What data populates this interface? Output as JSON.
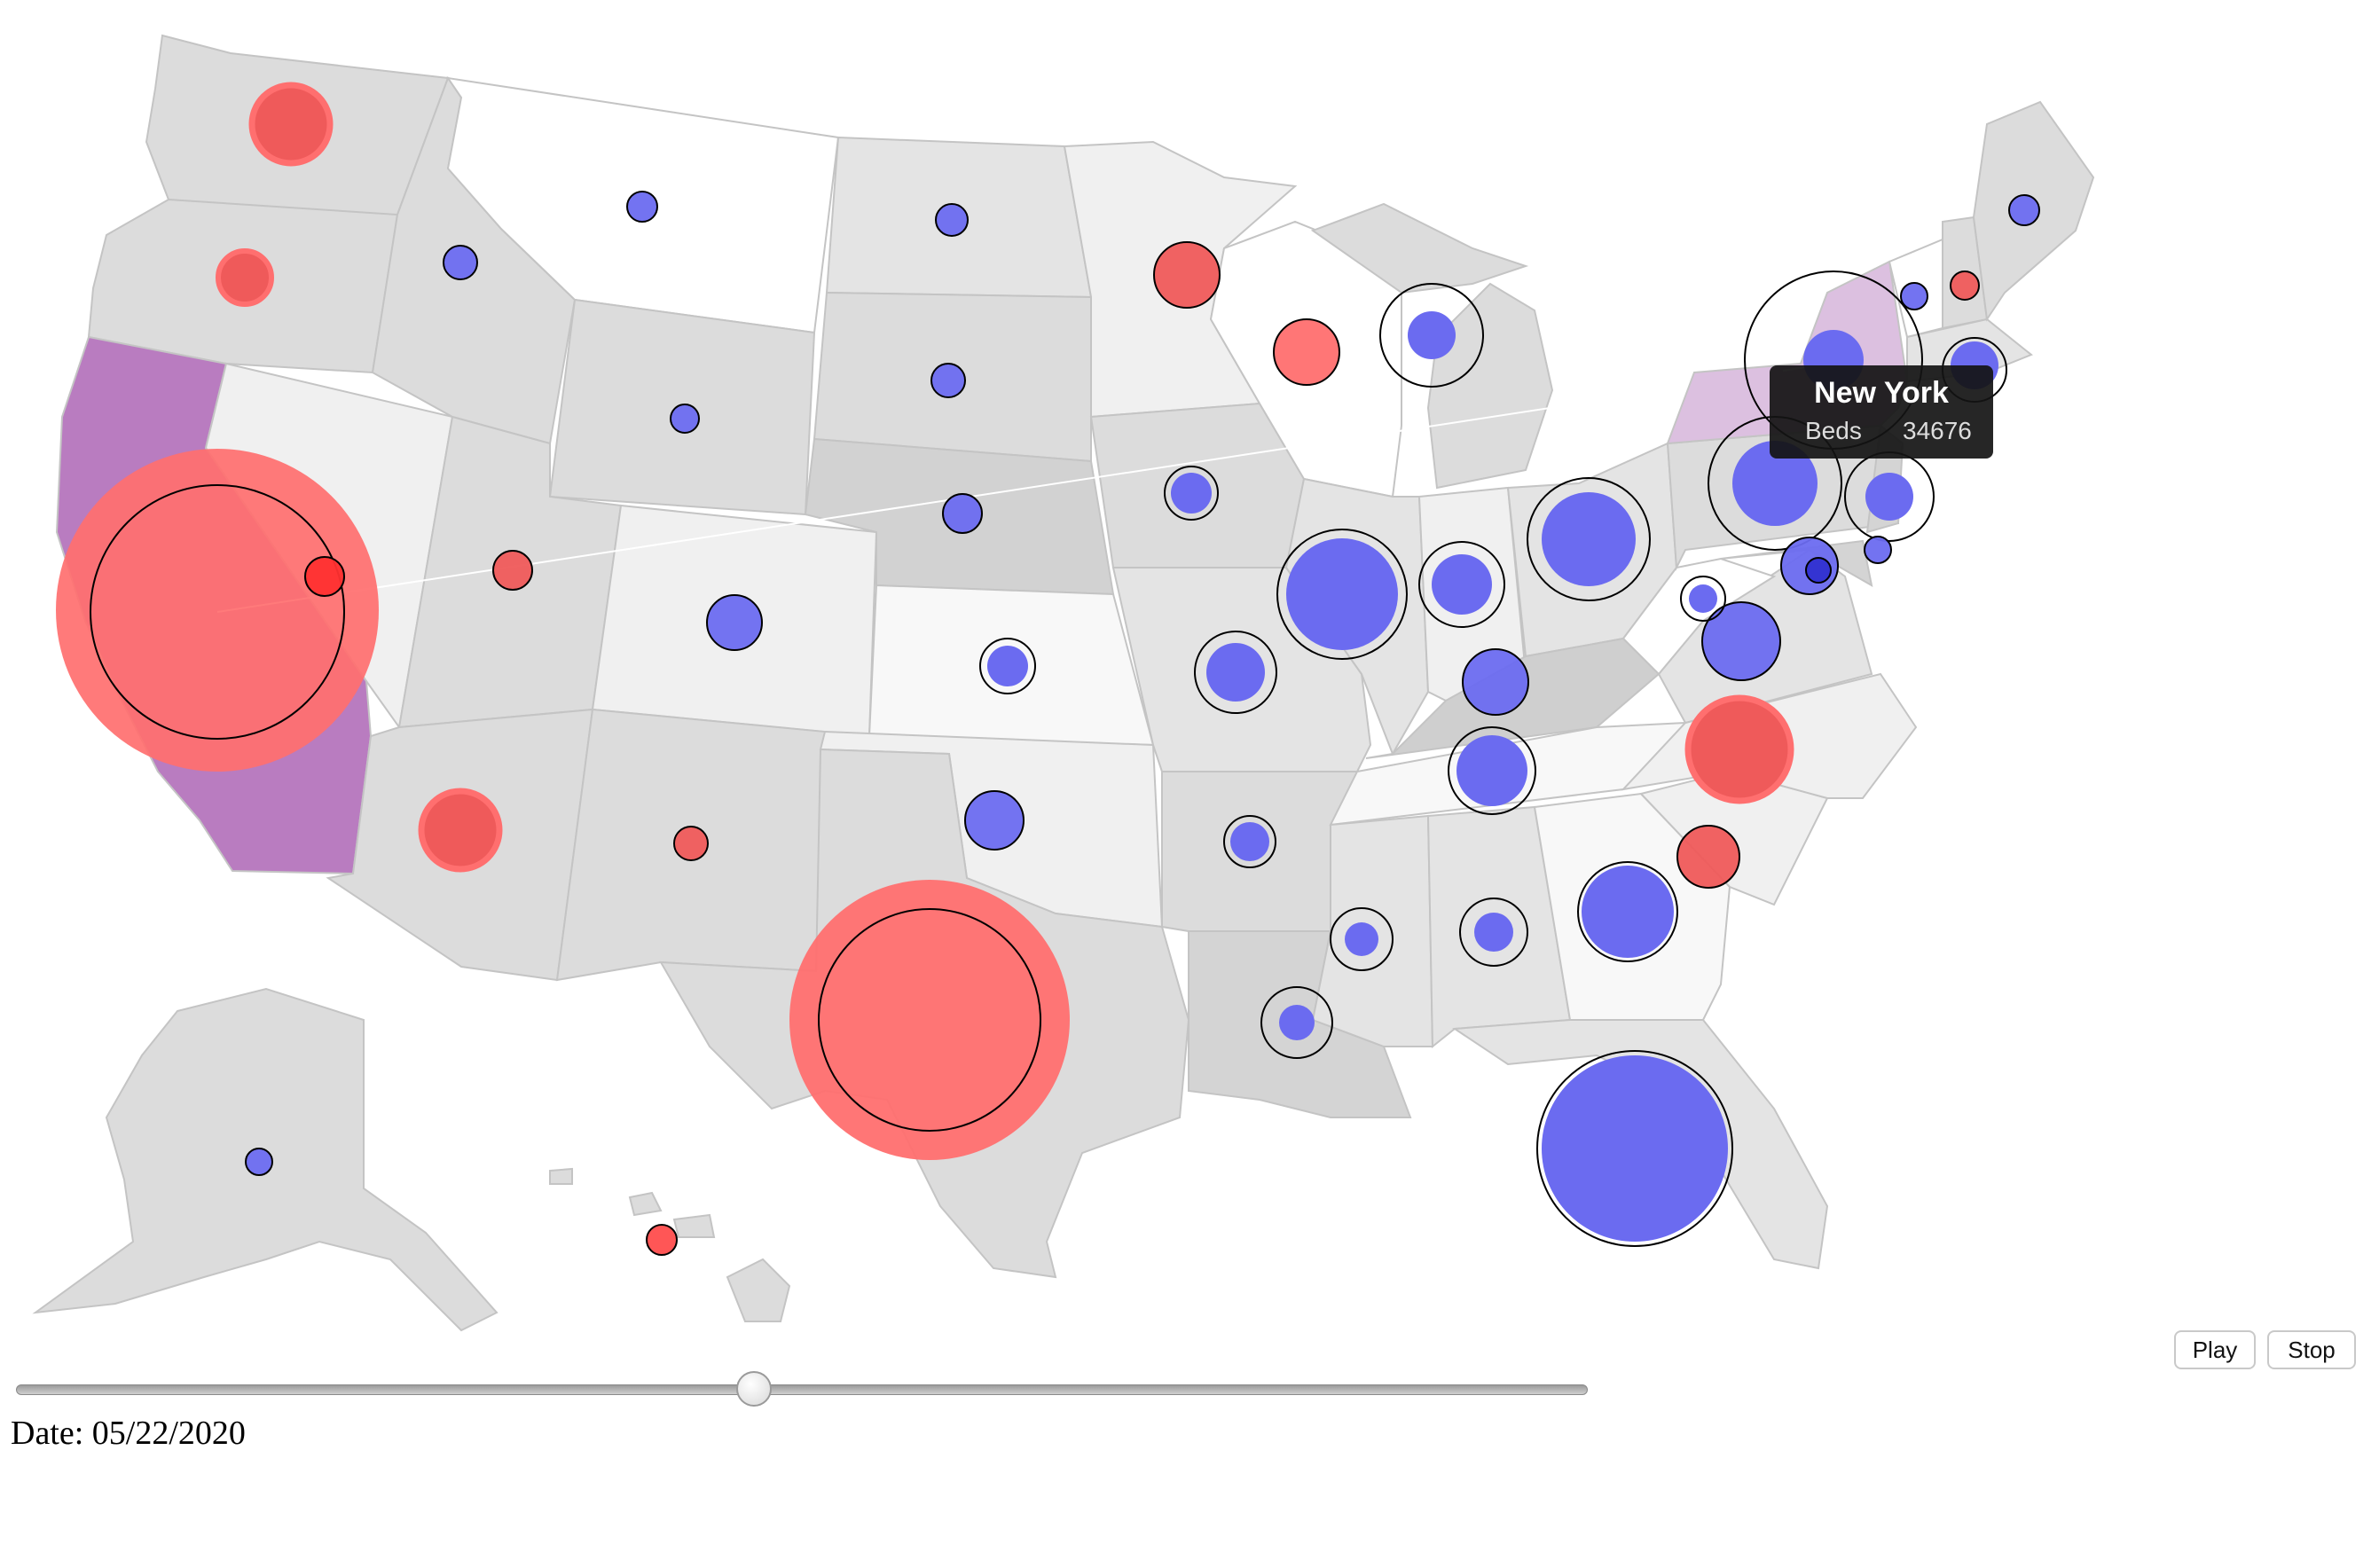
{
  "tooltip": {
    "state": "New York",
    "label": "Beds",
    "value": "34676"
  },
  "controls": {
    "play_label": "Play",
    "stop_label": "Stop"
  },
  "slider": {
    "position_fraction": 0.47
  },
  "date": {
    "label": "Date:",
    "value": "05/22/2020"
  },
  "colors": {
    "red_fill": "#ef5a5a",
    "red_light": "#ff6f6f",
    "blue_fill": "#6b6bf0",
    "purple_state": "#b97cc0",
    "light_purple_state": "#dcc0e0",
    "state_gray": "#dcdcdc",
    "state_white": "#ffffff"
  },
  "states": [
    {
      "name": "Washington",
      "party": "red",
      "size": 18
    },
    {
      "name": "Oregon",
      "party": "red",
      "size": 14
    },
    {
      "name": "California",
      "party": "red",
      "size": 100
    },
    {
      "name": "Nevada",
      "party": "red",
      "size": 8
    },
    {
      "name": "Idaho",
      "party": "blue",
      "size": 6
    },
    {
      "name": "Montana",
      "party": "blue",
      "size": 6
    },
    {
      "name": "Utah",
      "party": "red",
      "size": 10
    },
    {
      "name": "Arizona",
      "party": "red",
      "size": 22
    },
    {
      "name": "Wyoming",
      "party": "blue",
      "size": 5
    },
    {
      "name": "Colorado",
      "party": "blue",
      "size": 16
    },
    {
      "name": "New Mexico",
      "party": "red",
      "size": 8
    },
    {
      "name": "North Dakota",
      "party": "blue",
      "size": 5
    },
    {
      "name": "South Dakota",
      "party": "blue",
      "size": 6
    },
    {
      "name": "Nebraska",
      "party": "blue",
      "size": 8
    },
    {
      "name": "Kansas",
      "party": "blue",
      "size": 12
    },
    {
      "name": "Oklahoma",
      "party": "blue",
      "size": 14
    },
    {
      "name": "Texas",
      "party": "red",
      "size": 85
    },
    {
      "name": "Minnesota",
      "party": "red",
      "size": 20
    },
    {
      "name": "Iowa",
      "party": "blue",
      "size": 12
    },
    {
      "name": "Missouri",
      "party": "blue",
      "size": 22
    },
    {
      "name": "Arkansas",
      "party": "blue",
      "size": 12
    },
    {
      "name": "Louisiana",
      "party": "blue",
      "size": 18
    },
    {
      "name": "Wisconsin",
      "party": "red",
      "size": 18
    },
    {
      "name": "Illinois",
      "party": "blue",
      "size": 38
    },
    {
      "name": "Michigan",
      "party": "blue",
      "size": 28
    },
    {
      "name": "Indiana",
      "party": "blue",
      "size": 24
    },
    {
      "name": "Ohio",
      "party": "blue",
      "size": 38
    },
    {
      "name": "Kentucky",
      "party": "blue",
      "size": 18
    },
    {
      "name": "Tennessee",
      "party": "blue",
      "size": 22
    },
    {
      "name": "Mississippi",
      "party": "blue",
      "size": 12
    },
    {
      "name": "Alabama",
      "party": "blue",
      "size": 14
    },
    {
      "name": "Georgia",
      "party": "blue",
      "size": 30
    },
    {
      "name": "Florida",
      "party": "blue",
      "size": 55
    },
    {
      "name": "South Carolina",
      "party": "red",
      "size": 18
    },
    {
      "name": "North Carolina",
      "party": "red",
      "size": 30
    },
    {
      "name": "Virginia",
      "party": "blue",
      "size": 24
    },
    {
      "name": "West Virginia",
      "party": "blue",
      "size": 10
    },
    {
      "name": "Pennsylvania",
      "party": "blue",
      "size": 40
    },
    {
      "name": "New York",
      "party": "blue",
      "size": 55
    },
    {
      "name": "New Jersey",
      "party": "blue",
      "size": 26
    },
    {
      "name": "Maryland",
      "party": "blue",
      "size": 14
    },
    {
      "name": "Delaware",
      "party": "blue",
      "size": 6
    },
    {
      "name": "Massachusetts",
      "party": "blue",
      "size": 20
    },
    {
      "name": "Vermont",
      "party": "blue",
      "size": 5
    },
    {
      "name": "New Hampshire",
      "party": "red",
      "size": 5
    },
    {
      "name": "Maine",
      "party": "blue",
      "size": 6
    },
    {
      "name": "Alaska",
      "party": "blue",
      "size": 5
    },
    {
      "name": "Hawaii",
      "party": "red",
      "size": 6
    }
  ]
}
